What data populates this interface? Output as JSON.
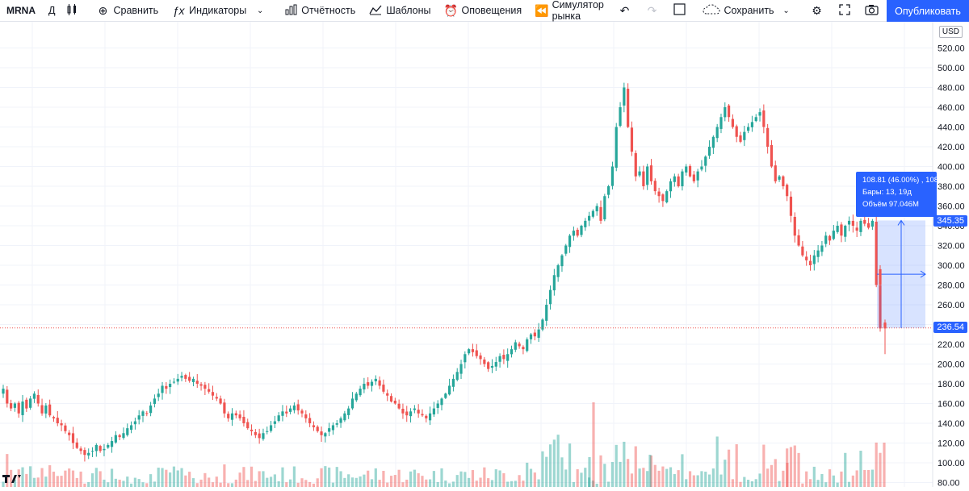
{
  "toolbar": {
    "symbol": "MRNA",
    "interval": "Д",
    "compare": "Сравнить",
    "indicators": "Индикаторы",
    "reports": "Отчётность",
    "templates": "Шаблоны",
    "alerts": "Оповещения",
    "replay": "Симулятор рынка",
    "save": "Сохранить",
    "publish": "Опубликовать"
  },
  "currency": "USD",
  "price_axis_labels": [
    "80.00",
    "100.00",
    "120.00",
    "140.00",
    "160.00",
    "180.00",
    "200.00",
    "220.00",
    "240.00",
    "260.00",
    "280.00",
    "300.00",
    "320.00",
    "340.00",
    "360.00",
    "380.00",
    "400.00",
    "420.00",
    "440.00",
    "460.00",
    "480.00",
    "500.00",
    "520.00"
  ],
  "price_tags": {
    "measure_top": "345.35",
    "current": "236.54"
  },
  "measure": {
    "line1": "108.81 (46.00%) , 108",
    "line2": "Бары: 13, 19д",
    "line3": "Объём 97.046M"
  },
  "colors": {
    "up": "#26a69a",
    "down": "#ef5350",
    "accent": "#2962ff"
  },
  "chart_data": {
    "type": "candlestick",
    "ylim": [
      80,
      520
    ],
    "closes": [
      175,
      160,
      155,
      160,
      150,
      162,
      155,
      165,
      170,
      160,
      150,
      158,
      148,
      145,
      140,
      138,
      132,
      128,
      120,
      115,
      112,
      108,
      110,
      112,
      118,
      112,
      114,
      118,
      122,
      128,
      126,
      130,
      135,
      138,
      142,
      148,
      152,
      150,
      158,
      165,
      170,
      178,
      175,
      180,
      182,
      185,
      188,
      185,
      183,
      185,
      180,
      178,
      175,
      172,
      168,
      165,
      160,
      150,
      145,
      150,
      148,
      145,
      140,
      135,
      132,
      128,
      125,
      130,
      132,
      138,
      142,
      148,
      152,
      150,
      155,
      158,
      153,
      150,
      145,
      140,
      136,
      132,
      128,
      130,
      135,
      138,
      140,
      145,
      150,
      155,
      165,
      170,
      175,
      180,
      178,
      182,
      185,
      178,
      172,
      168,
      162,
      160,
      155,
      150,
      148,
      152,
      155,
      150,
      148,
      145,
      150,
      155,
      160,
      165,
      170,
      178,
      185,
      192,
      200,
      210,
      215,
      212,
      208,
      205,
      200,
      195,
      198,
      202,
      208,
      205,
      210,
      215,
      222,
      218,
      215,
      225,
      230,
      228,
      235,
      245,
      260,
      275,
      290,
      300,
      310,
      320,
      330,
      335,
      330,
      340,
      345,
      350,
      355,
      360,
      345,
      370,
      380,
      400,
      440,
      460,
      480,
      440,
      415,
      390,
      395,
      380,
      400,
      385,
      375,
      370,
      365,
      375,
      385,
      390,
      380,
      395,
      400,
      390,
      385,
      395,
      400,
      410,
      420,
      430,
      440,
      450,
      460,
      450,
      440,
      430,
      425,
      435,
      440,
      445,
      450,
      455,
      440,
      420,
      400,
      385,
      390,
      380,
      370,
      350,
      330,
      320,
      310,
      305,
      300,
      310,
      315,
      320,
      330,
      325,
      335,
      340,
      330,
      340,
      345,
      340,
      335,
      345,
      342,
      338,
      345,
      280,
      236
    ]
  }
}
